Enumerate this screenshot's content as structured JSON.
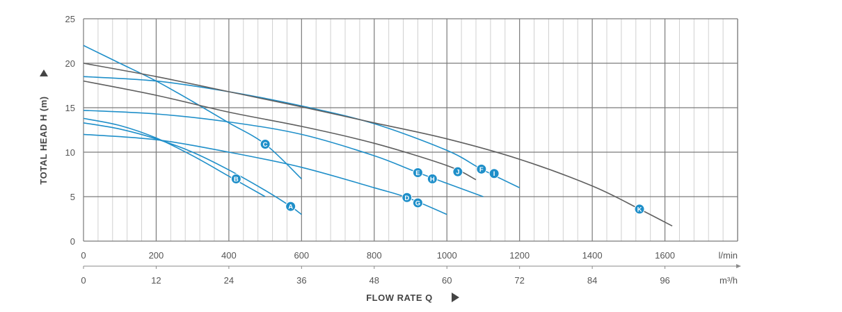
{
  "chart_data": {
    "type": "line",
    "xlabel": "FLOW RATE Q",
    "ylabel": "TOTAL HEAD H (m)",
    "xlim": [
      0,
      1800
    ],
    "ylim": [
      0,
      25
    ],
    "x_ticks": [
      0,
      200,
      400,
      600,
      800,
      1000,
      1200,
      1400,
      1600
    ],
    "x_unit": "l/min",
    "x2_ticks": [
      "0",
      "12",
      "24",
      "36",
      "48",
      "60",
      "72",
      "84",
      "96"
    ],
    "x2_unit": "m³/h",
    "y_ticks": [
      0,
      5,
      10,
      15,
      20,
      25
    ],
    "grid": true,
    "colors": {
      "blue": "#1f8fc9",
      "gray": "#5f5f5f",
      "grid_major": "#7a7a7a",
      "grid_minor": "#d0d0d0"
    },
    "series": [
      {
        "name": "A",
        "color": "blue",
        "label_at": [
          570,
          3.9
        ],
        "points": [
          [
            0,
            13.3
          ],
          [
            100,
            12.6
          ],
          [
            200,
            11.5
          ],
          [
            300,
            10.0
          ],
          [
            400,
            8.0
          ],
          [
            500,
            5.7
          ],
          [
            570,
            3.9
          ],
          [
            600,
            3.0
          ]
        ]
      },
      {
        "name": "B",
        "color": "blue",
        "label_at": [
          420,
          7.0
        ],
        "points": [
          [
            0,
            13.8
          ],
          [
            100,
            13.0
          ],
          [
            200,
            11.6
          ],
          [
            300,
            9.6
          ],
          [
            400,
            7.3
          ],
          [
            500,
            5.0
          ]
        ]
      },
      {
        "name": "C",
        "color": "blue",
        "label_at": [
          500,
          10.9
        ],
        "points": [
          [
            0,
            22.0
          ],
          [
            100,
            20.0
          ],
          [
            200,
            18.0
          ],
          [
            300,
            15.7
          ],
          [
            400,
            13.3
          ],
          [
            500,
            10.9
          ],
          [
            600,
            7.0
          ]
        ]
      },
      {
        "name": "D",
        "color": "blue",
        "label_at": [
          890,
          4.9
        ],
        "points": [
          [
            0,
            12.0
          ],
          [
            200,
            11.4
          ],
          [
            400,
            10.0
          ],
          [
            600,
            8.3
          ],
          [
            800,
            6.0
          ],
          [
            890,
            4.9
          ],
          [
            1000,
            3.0
          ]
        ]
      },
      {
        "name": "E",
        "color": "blue",
        "label_at": [
          920,
          7.7
        ],
        "points": [
          [
            0,
            14.7
          ],
          [
            200,
            14.3
          ],
          [
            400,
            13.4
          ],
          [
            600,
            12.0
          ],
          [
            800,
            9.6
          ],
          [
            920,
            7.7
          ],
          [
            1100,
            5.0
          ]
        ]
      },
      {
        "name": "F",
        "color": "blue",
        "label_at": [
          1095,
          8.1
        ],
        "points": [
          [
            0,
            18.5
          ],
          [
            200,
            18.0
          ],
          [
            400,
            16.8
          ],
          [
            600,
            15.2
          ],
          [
            800,
            13.2
          ],
          [
            1000,
            10.2
          ],
          [
            1095,
            8.1
          ],
          [
            1200,
            6.0
          ]
        ]
      },
      {
        "name": "G",
        "color": "gray",
        "label_at": [
          920,
          4.3
        ],
        "points": []
      },
      {
        "name": "H",
        "color": "gray",
        "label_at": [
          960,
          7.0
        ],
        "points": []
      },
      {
        "name": "I",
        "color": "gray",
        "label_at": [
          1130,
          7.6
        ],
        "points": []
      },
      {
        "name": "J",
        "color": "gray",
        "label_at": [
          1030,
          7.8
        ],
        "points": [
          [
            0,
            18.0
          ],
          [
            200,
            16.4
          ],
          [
            400,
            14.5
          ],
          [
            600,
            12.9
          ],
          [
            800,
            11.0
          ],
          [
            1000,
            8.5
          ],
          [
            1080,
            6.9
          ]
        ]
      },
      {
        "name": "K",
        "color": "gray",
        "label_at": [
          1530,
          3.6
        ],
        "points": [
          [
            0,
            20.0
          ],
          [
            200,
            18.5
          ],
          [
            400,
            16.8
          ],
          [
            600,
            15.1
          ],
          [
            800,
            13.3
          ],
          [
            1000,
            11.5
          ],
          [
            1200,
            9.2
          ],
          [
            1400,
            6.2
          ],
          [
            1530,
            3.6
          ],
          [
            1620,
            1.7
          ]
        ]
      }
    ]
  }
}
